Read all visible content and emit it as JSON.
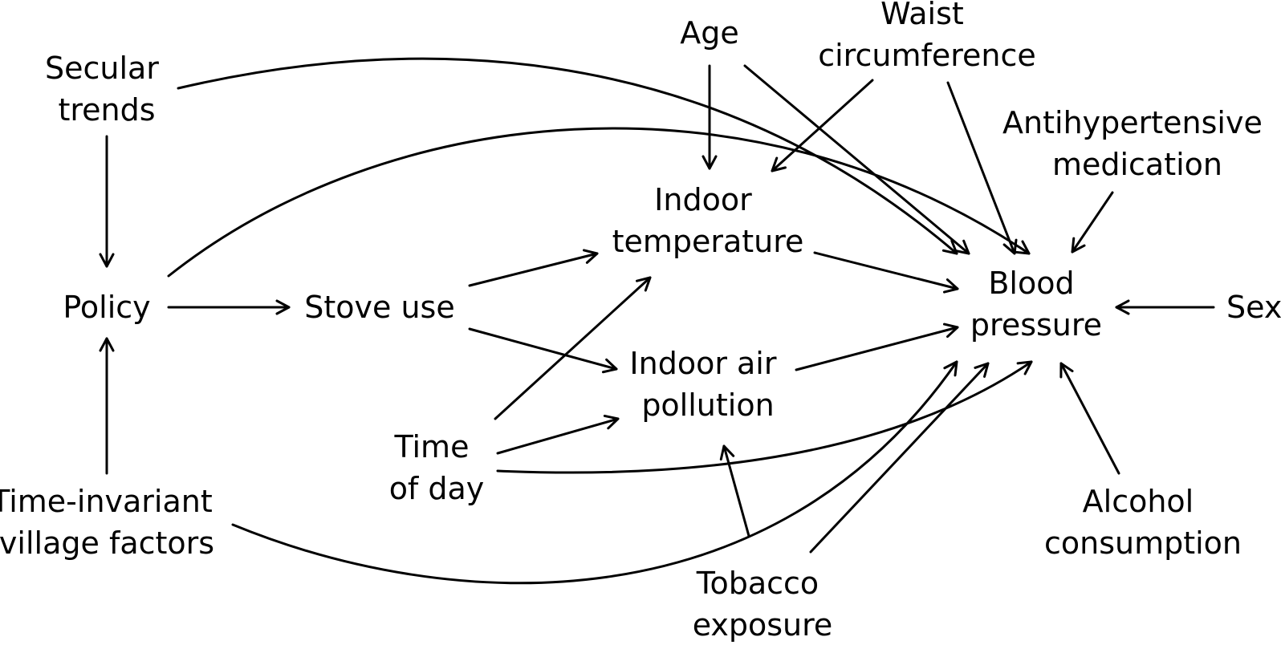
{
  "nodes": {
    "secular_trends": [
      "Secular",
      "trends"
    ],
    "policy": [
      "Policy"
    ],
    "time_invariant": [
      "Time-invariant",
      "village factors"
    ],
    "stove_use": [
      "Stove use"
    ],
    "time_of_day": [
      "Time",
      "of day"
    ],
    "age": [
      "Age"
    ],
    "waist": [
      "Waist",
      "circumference"
    ],
    "indoor_temperature": [
      "Indoor",
      "temperature"
    ],
    "indoor_air_pollution": [
      "Indoor air",
      "pollution"
    ],
    "tobacco": [
      "Tobacco",
      "exposure"
    ],
    "blood_pressure": [
      "Blood",
      "pressure"
    ],
    "antihypertensive": [
      "Antihypertensive",
      "medication"
    ],
    "sex": [
      "Sex"
    ],
    "alcohol": [
      "Alcohol",
      "consumption"
    ]
  },
  "edges": [
    {
      "from": "secular_trends",
      "to": "policy"
    },
    {
      "from": "time_invariant",
      "to": "policy"
    },
    {
      "from": "policy",
      "to": "stove_use"
    },
    {
      "from": "secular_trends",
      "to": "blood_pressure"
    },
    {
      "from": "policy",
      "to": "blood_pressure"
    },
    {
      "from": "time_invariant",
      "to": "blood_pressure"
    },
    {
      "from": "stove_use",
      "to": "indoor_temperature"
    },
    {
      "from": "stove_use",
      "to": "indoor_air_pollution"
    },
    {
      "from": "time_of_day",
      "to": "indoor_temperature"
    },
    {
      "from": "time_of_day",
      "to": "indoor_air_pollution"
    },
    {
      "from": "time_of_day",
      "to": "blood_pressure"
    },
    {
      "from": "age",
      "to": "indoor_temperature"
    },
    {
      "from": "age",
      "to": "blood_pressure"
    },
    {
      "from": "waist",
      "to": "indoor_temperature"
    },
    {
      "from": "waist",
      "to": "blood_pressure"
    },
    {
      "from": "indoor_temperature",
      "to": "blood_pressure"
    },
    {
      "from": "indoor_air_pollution",
      "to": "blood_pressure"
    },
    {
      "from": "tobacco",
      "to": "indoor_air_pollution"
    },
    {
      "from": "tobacco",
      "to": "blood_pressure"
    },
    {
      "from": "antihypertensive",
      "to": "blood_pressure"
    },
    {
      "from": "sex",
      "to": "blood_pressure"
    },
    {
      "from": "alcohol",
      "to": "blood_pressure"
    }
  ]
}
